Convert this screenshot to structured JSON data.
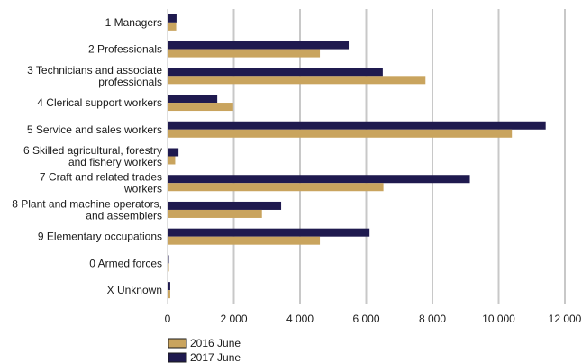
{
  "chart_data": {
    "type": "bar",
    "orientation": "horizontal",
    "categories": [
      [
        "1 Managers"
      ],
      [
        "2 Professionals"
      ],
      [
        "3 Technicians and associate",
        "professionals"
      ],
      [
        "4 Clerical support workers"
      ],
      [
        "5 Service and sales workers"
      ],
      [
        "6 Skilled agricultural, forestry",
        "and fishery workers"
      ],
      [
        "7 Craft and related trades",
        "workers"
      ],
      [
        "8 Plant and machine operators,",
        "and assemblers"
      ],
      [
        "9 Elementary occupations"
      ],
      [
        "0 Armed forces"
      ],
      [
        "X Unknown"
      ]
    ],
    "series": [
      {
        "name": "2017 June",
        "color": "#1f1a4f",
        "values": [
          270,
          5470,
          6500,
          1500,
          11420,
          330,
          9130,
          3430,
          6100,
          30,
          80
        ]
      },
      {
        "name": "2016 June",
        "color": "#c9a45e",
        "values": [
          260,
          4600,
          7790,
          1980,
          10400,
          230,
          6520,
          2850,
          4600,
          40,
          80
        ]
      }
    ],
    "xlim": [
      0,
      12000
    ],
    "xticks": [
      0,
      2000,
      4000,
      6000,
      8000,
      10000,
      12000
    ],
    "xtick_labels": [
      "0",
      "2 000",
      "4 000",
      "6 000",
      "8 000",
      "10 000",
      "12 000"
    ],
    "grid": true,
    "legend": {
      "position": "bottom-left",
      "entries": [
        {
          "label": "2016 June",
          "color": "#c9a45e"
        },
        {
          "label": "2017 June",
          "color": "#1f1a4f"
        }
      ]
    }
  }
}
